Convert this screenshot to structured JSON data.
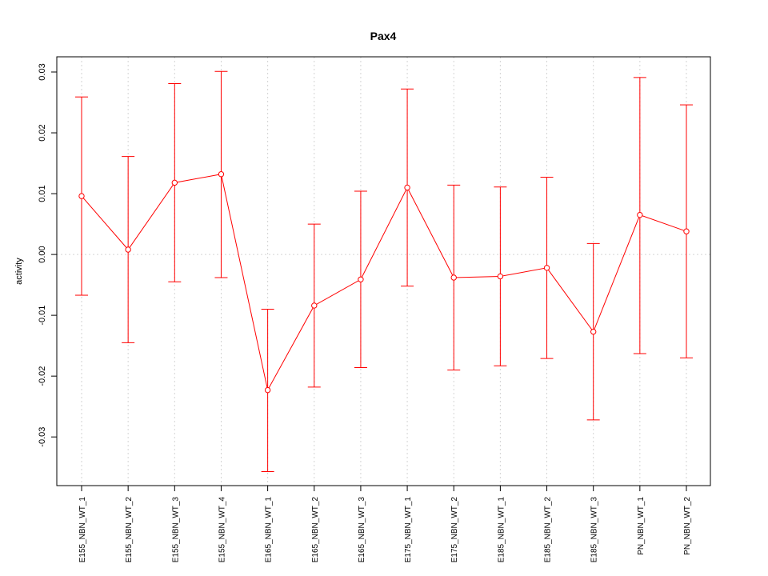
{
  "chart_data": {
    "type": "line",
    "title": "Pax4",
    "xlabel": "",
    "ylabel": "activity",
    "ylim": [
      -0.038,
      0.0325
    ],
    "yticks": [
      -0.03,
      -0.02,
      -0.01,
      0.0,
      0.01,
      0.02,
      0.03
    ],
    "ytick_labels": [
      "-0.03",
      "-0.02",
      "-0.01",
      "0.00",
      "0.01",
      "0.02",
      "0.03"
    ],
    "grid": true,
    "categories": [
      "E155_NBN_WT_1",
      "E155_NBN_WT_2",
      "E155_NBN_WT_3",
      "E155_NBN_WT_4",
      "E165_NBN_WT_1",
      "E165_NBN_WT_2",
      "E165_NBN_WT_3",
      "E175_NBN_WT_1",
      "E175_NBN_WT_2",
      "E185_NBN_WT_1",
      "E185_NBN_WT_2",
      "E185_NBN_WT_3",
      "PN_NBN_WT_1",
      "PN_NBN_WT_2"
    ],
    "series": [
      {
        "color": "#ff0000",
        "values": [
          0.0096,
          0.0008,
          0.0118,
          0.0132,
          -0.0223,
          -0.0084,
          -0.0041,
          0.011,
          -0.0038,
          -0.0036,
          -0.0022,
          -0.0127,
          0.0065,
          0.0038
        ],
        "upper": [
          0.0259,
          0.0161,
          0.0281,
          0.0301,
          -0.009,
          0.005,
          0.0104,
          0.0272,
          0.0114,
          0.0111,
          0.0127,
          0.0018,
          0.0291,
          0.0246
        ],
        "lower": [
          -0.0067,
          -0.0145,
          -0.0045,
          -0.0038,
          -0.0357,
          -0.0218,
          -0.0186,
          -0.0052,
          -0.019,
          -0.0183,
          -0.0171,
          -0.0272,
          -0.0163,
          -0.017
        ]
      }
    ]
  }
}
